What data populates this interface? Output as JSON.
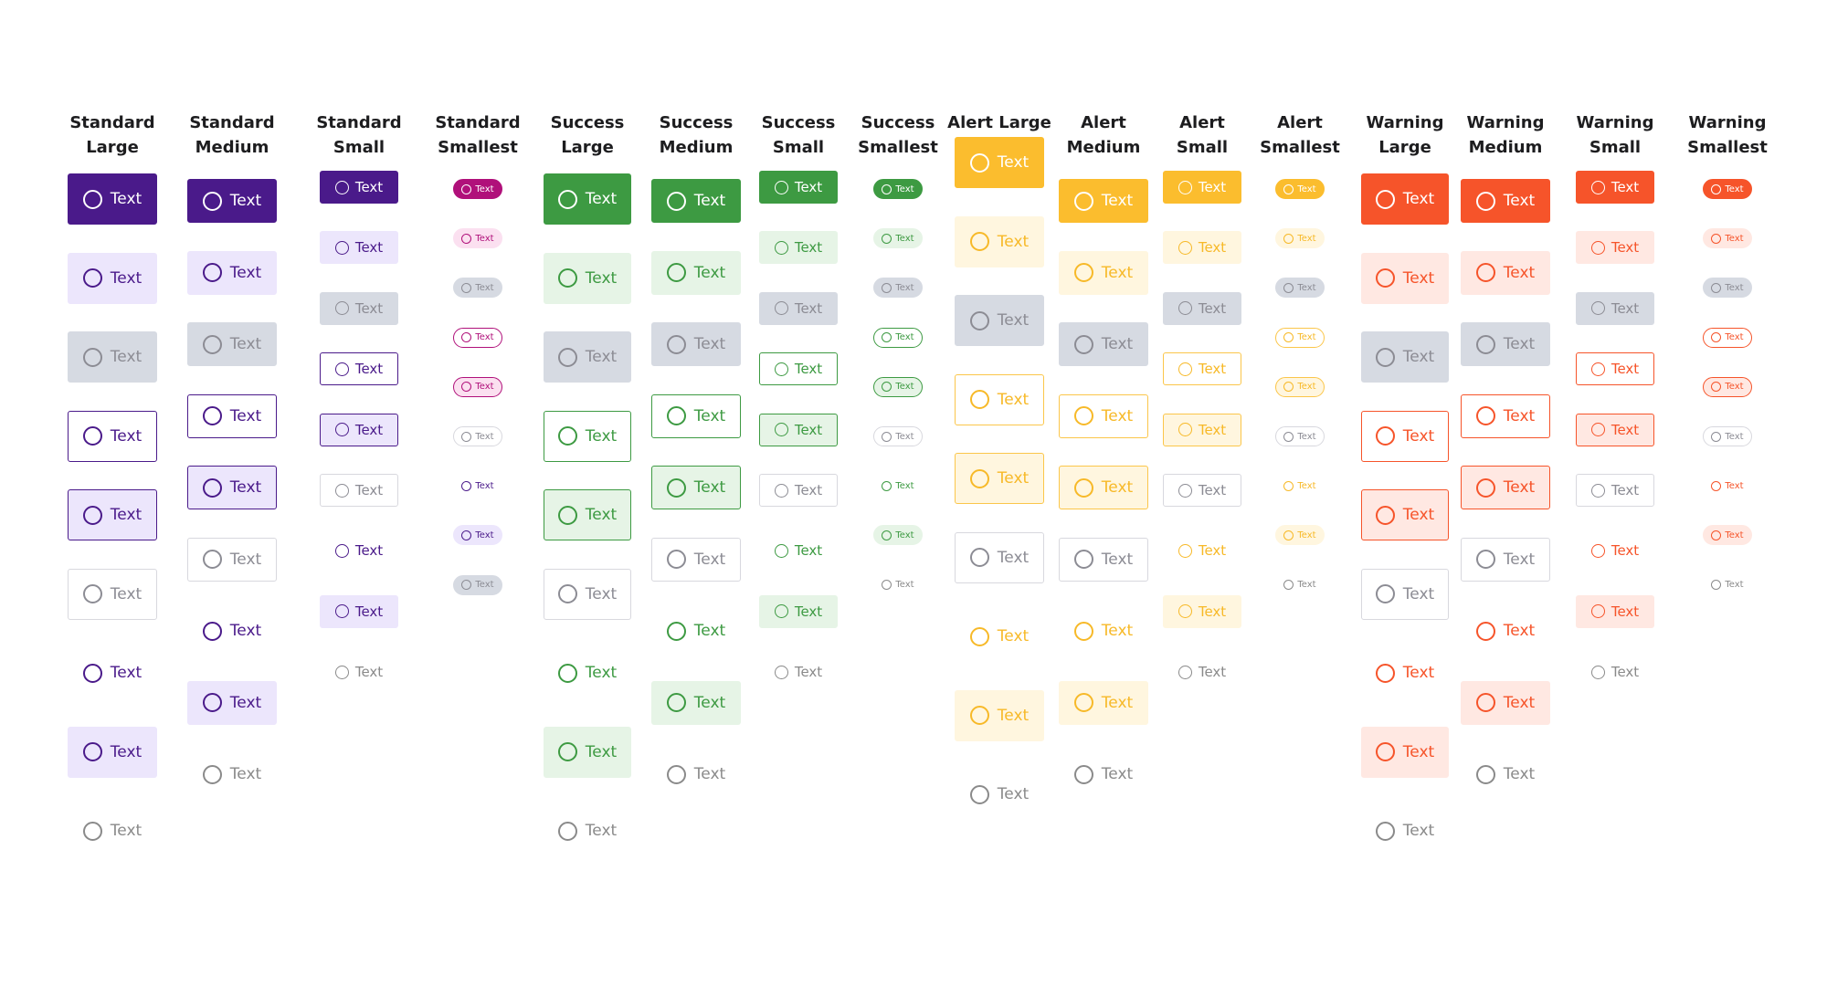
{
  "colors": {
    "standard": {
      "solid": "#4a1a8a",
      "light": "#ece6fc",
      "text": "#4a1a8a",
      "border": "#4a1a8a",
      "smallest_solid": "#b0107a",
      "smallest_light": "#fbe0f0"
    },
    "success": {
      "solid": "#3d9a42",
      "light": "#e6f4e6",
      "text": "#3d9a42",
      "border": "#3d9a42"
    },
    "alert": {
      "solid": "#fbbd2e",
      "light": "#fff6df",
      "text": "#f7b928",
      "border": "#fbc64a"
    },
    "warning": {
      "solid": "#f6542a",
      "light": "#ffe8e2",
      "text": "#f6542a",
      "border": "#f6542a"
    },
    "disabled": {
      "fill": "#d6dae2",
      "text": "#8c8c94",
      "border": "#d8d8de"
    },
    "ghost_text": "#8a8a8a"
  },
  "columns": [
    {
      "title_line1": "Standard",
      "title_line2": "Large",
      "family": "standard",
      "size": "large",
      "buttons": [
        {
          "label": "Text",
          "variant": "solid"
        },
        {
          "label": "Text",
          "variant": "light"
        },
        {
          "label": "Text",
          "variant": "disabled"
        },
        {
          "label": "Text",
          "variant": "outline"
        },
        {
          "label": "Text",
          "variant": "light-outline"
        },
        {
          "label": "Text",
          "variant": "plain-outline"
        },
        {
          "label": "Text",
          "variant": "ghost"
        },
        {
          "label": "Text",
          "variant": "light"
        },
        {
          "label": "Text",
          "variant": "ghost-disabled"
        }
      ]
    },
    {
      "title_line1": "Standard",
      "title_line2": "Medium",
      "family": "standard",
      "size": "medium",
      "buttons": [
        {
          "label": "Text",
          "variant": "solid"
        },
        {
          "label": "Text",
          "variant": "light"
        },
        {
          "label": "Text",
          "variant": "disabled"
        },
        {
          "label": "Text",
          "variant": "outline"
        },
        {
          "label": "Text",
          "variant": "light-outline"
        },
        {
          "label": "Text",
          "variant": "plain-outline"
        },
        {
          "label": "Text",
          "variant": "ghost"
        },
        {
          "label": "Text",
          "variant": "light"
        },
        {
          "label": "Text",
          "variant": "ghost-disabled"
        }
      ]
    },
    {
      "title_line1": "Standard",
      "title_line2": "Small",
      "family": "standard",
      "size": "small",
      "buttons": [
        {
          "label": "Text",
          "variant": "solid"
        },
        {
          "label": "Text",
          "variant": "light"
        },
        {
          "label": "Text",
          "variant": "disabled"
        },
        {
          "label": "Text",
          "variant": "outline"
        },
        {
          "label": "Text",
          "variant": "light-outline"
        },
        {
          "label": "Text",
          "variant": "plain-outline"
        },
        {
          "label": "Text",
          "variant": "ghost"
        },
        {
          "label": "Text",
          "variant": "light"
        },
        {
          "label": "Text",
          "variant": "ghost-disabled"
        }
      ]
    },
    {
      "title_line1": "Standard",
      "title_line2": "Smallest",
      "family": "standard",
      "size": "smallest",
      "buttons": [
        {
          "label": "Text",
          "variant": "solid-pink"
        },
        {
          "label": "Text",
          "variant": "light-pink"
        },
        {
          "label": "Text",
          "variant": "disabled"
        },
        {
          "label": "Text",
          "variant": "outline-pink"
        },
        {
          "label": "Text",
          "variant": "light-outline-pink"
        },
        {
          "label": "Text",
          "variant": "plain-outline"
        },
        {
          "label": "Text",
          "variant": "ghost"
        },
        {
          "label": "Text",
          "variant": "light"
        },
        {
          "label": "Text",
          "variant": "disabled"
        }
      ]
    },
    {
      "title_line1": "Success",
      "title_line2": "Large",
      "family": "success",
      "size": "large",
      "buttons": [
        {
          "label": "Text",
          "variant": "solid"
        },
        {
          "label": "Text",
          "variant": "light"
        },
        {
          "label": "Text",
          "variant": "disabled"
        },
        {
          "label": "Text",
          "variant": "outline"
        },
        {
          "label": "Text",
          "variant": "light-outline"
        },
        {
          "label": "Text",
          "variant": "plain-outline"
        },
        {
          "label": "Text",
          "variant": "ghost"
        },
        {
          "label": "Text",
          "variant": "light"
        },
        {
          "label": "Text",
          "variant": "ghost-disabled"
        }
      ]
    },
    {
      "title_line1": "Success",
      "title_line2": "Medium",
      "family": "success",
      "size": "medium",
      "buttons": [
        {
          "label": "Text",
          "variant": "solid"
        },
        {
          "label": "Text",
          "variant": "light"
        },
        {
          "label": "Text",
          "variant": "disabled"
        },
        {
          "label": "Text",
          "variant": "outline"
        },
        {
          "label": "Text",
          "variant": "light-outline"
        },
        {
          "label": "Text",
          "variant": "plain-outline"
        },
        {
          "label": "Text",
          "variant": "ghost"
        },
        {
          "label": "Text",
          "variant": "light"
        },
        {
          "label": "Text",
          "variant": "ghost-disabled"
        }
      ]
    },
    {
      "title_line1": "Success",
      "title_line2": "Small",
      "family": "success",
      "size": "small",
      "buttons": [
        {
          "label": "Text",
          "variant": "solid"
        },
        {
          "label": "Text",
          "variant": "light"
        },
        {
          "label": "Text",
          "variant": "disabled"
        },
        {
          "label": "Text",
          "variant": "outline"
        },
        {
          "label": "Text",
          "variant": "light-outline"
        },
        {
          "label": "Text",
          "variant": "plain-outline"
        },
        {
          "label": "Text",
          "variant": "ghost"
        },
        {
          "label": "Text",
          "variant": "light"
        },
        {
          "label": "Text",
          "variant": "ghost-disabled"
        }
      ]
    },
    {
      "title_line1": "Success",
      "title_line2": "Smallest",
      "family": "success",
      "size": "smallest",
      "buttons": [
        {
          "label": "Text",
          "variant": "solid"
        },
        {
          "label": "Text",
          "variant": "light"
        },
        {
          "label": "Text",
          "variant": "disabled"
        },
        {
          "label": "Text",
          "variant": "outline"
        },
        {
          "label": "Text",
          "variant": "light-outline"
        },
        {
          "label": "Text",
          "variant": "plain-outline"
        },
        {
          "label": "Text",
          "variant": "ghost"
        },
        {
          "label": "Text",
          "variant": "light"
        },
        {
          "label": "Text",
          "variant": "ghost-disabled"
        }
      ]
    },
    {
      "title_line1": "Alert Large",
      "title_line2": "",
      "family": "alert",
      "size": "large",
      "buttons": [
        {
          "label": "Text",
          "variant": "solid"
        },
        {
          "label": "Text",
          "variant": "light"
        },
        {
          "label": "Text",
          "variant": "disabled"
        },
        {
          "label": "Text",
          "variant": "outline"
        },
        {
          "label": "Text",
          "variant": "light-outline"
        },
        {
          "label": "Text",
          "variant": "plain-outline"
        },
        {
          "label": "Text",
          "variant": "ghost"
        },
        {
          "label": "Text",
          "variant": "light"
        },
        {
          "label": "Text",
          "variant": "ghost-disabled"
        }
      ]
    },
    {
      "title_line1": "Alert",
      "title_line2": "Medium",
      "family": "alert",
      "size": "medium",
      "buttons": [
        {
          "label": "Text",
          "variant": "solid"
        },
        {
          "label": "Text",
          "variant": "light"
        },
        {
          "label": "Text",
          "variant": "disabled"
        },
        {
          "label": "Text",
          "variant": "outline"
        },
        {
          "label": "Text",
          "variant": "light-outline"
        },
        {
          "label": "Text",
          "variant": "plain-outline"
        },
        {
          "label": "Text",
          "variant": "ghost"
        },
        {
          "label": "Text",
          "variant": "light"
        },
        {
          "label": "Text",
          "variant": "ghost-disabled"
        }
      ]
    },
    {
      "title_line1": "Alert",
      "title_line2": "Small",
      "family": "alert",
      "size": "small",
      "buttons": [
        {
          "label": "Text",
          "variant": "solid"
        },
        {
          "label": "Text",
          "variant": "light"
        },
        {
          "label": "Text",
          "variant": "disabled"
        },
        {
          "label": "Text",
          "variant": "outline"
        },
        {
          "label": "Text",
          "variant": "light-outline"
        },
        {
          "label": "Text",
          "variant": "plain-outline"
        },
        {
          "label": "Text",
          "variant": "ghost"
        },
        {
          "label": "Text",
          "variant": "light"
        },
        {
          "label": "Text",
          "variant": "ghost-disabled"
        }
      ]
    },
    {
      "title_line1": "Alert",
      "title_line2": "Smallest",
      "family": "alert",
      "size": "smallest",
      "buttons": [
        {
          "label": "Text",
          "variant": "solid"
        },
        {
          "label": "Text",
          "variant": "light"
        },
        {
          "label": "Text",
          "variant": "disabled"
        },
        {
          "label": "Text",
          "variant": "outline"
        },
        {
          "label": "Text",
          "variant": "light-outline"
        },
        {
          "label": "Text",
          "variant": "plain-outline"
        },
        {
          "label": "Text",
          "variant": "ghost"
        },
        {
          "label": "Text",
          "variant": "light"
        },
        {
          "label": "Text",
          "variant": "ghost-disabled"
        }
      ]
    },
    {
      "title_line1": "Warning",
      "title_line2": "Large",
      "family": "warning",
      "size": "large",
      "buttons": [
        {
          "label": "Text",
          "variant": "solid"
        },
        {
          "label": "Text",
          "variant": "light"
        },
        {
          "label": "Text",
          "variant": "disabled"
        },
        {
          "label": "Text",
          "variant": "outline"
        },
        {
          "label": "Text",
          "variant": "light-outline"
        },
        {
          "label": "Text",
          "variant": "plain-outline"
        },
        {
          "label": "Text",
          "variant": "ghost"
        },
        {
          "label": "Text",
          "variant": "light"
        },
        {
          "label": "Text",
          "variant": "ghost-disabled"
        }
      ]
    },
    {
      "title_line1": "Warning",
      "title_line2": "Medium",
      "family": "warning",
      "size": "medium",
      "buttons": [
        {
          "label": "Text",
          "variant": "solid"
        },
        {
          "label": "Text",
          "variant": "light"
        },
        {
          "label": "Text",
          "variant": "disabled"
        },
        {
          "label": "Text",
          "variant": "outline"
        },
        {
          "label": "Text",
          "variant": "light-outline"
        },
        {
          "label": "Text",
          "variant": "plain-outline"
        },
        {
          "label": "Text",
          "variant": "ghost"
        },
        {
          "label": "Text",
          "variant": "light"
        },
        {
          "label": "Text",
          "variant": "ghost-disabled"
        }
      ]
    },
    {
      "title_line1": "Warning",
      "title_line2": "Small",
      "family": "warning",
      "size": "small",
      "buttons": [
        {
          "label": "Text",
          "variant": "solid"
        },
        {
          "label": "Text",
          "variant": "light"
        },
        {
          "label": "Text",
          "variant": "disabled"
        },
        {
          "label": "Text",
          "variant": "outline"
        },
        {
          "label": "Text",
          "variant": "light-outline"
        },
        {
          "label": "Text",
          "variant": "plain-outline"
        },
        {
          "label": "Text",
          "variant": "ghost"
        },
        {
          "label": "Text",
          "variant": "light"
        },
        {
          "label": "Text",
          "variant": "ghost-disabled"
        }
      ]
    },
    {
      "title_line1": "Warning",
      "title_line2": "Smallest",
      "family": "warning",
      "size": "smallest",
      "buttons": [
        {
          "label": "Text",
          "variant": "solid"
        },
        {
          "label": "Text",
          "variant": "light"
        },
        {
          "label": "Text",
          "variant": "disabled"
        },
        {
          "label": "Text",
          "variant": "outline"
        },
        {
          "label": "Text",
          "variant": "light-outline"
        },
        {
          "label": "Text",
          "variant": "plain-outline"
        },
        {
          "label": "Text",
          "variant": "ghost"
        },
        {
          "label": "Text",
          "variant": "light"
        },
        {
          "label": "Text",
          "variant": "ghost-disabled"
        }
      ]
    }
  ]
}
